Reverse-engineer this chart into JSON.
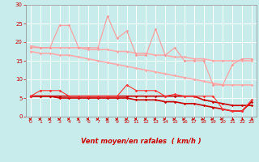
{
  "x": [
    0,
    1,
    2,
    3,
    4,
    5,
    6,
    7,
    8,
    9,
    10,
    11,
    12,
    13,
    14,
    15,
    16,
    17,
    18,
    19,
    20,
    21,
    22,
    23
  ],
  "series": [
    {
      "name": "gusts_light_zigzag",
      "y": [
        18.5,
        18.5,
        18.5,
        24.5,
        24.5,
        18.5,
        18.5,
        18.5,
        27,
        21,
        23,
        16.5,
        16.5,
        23.5,
        16.5,
        18.5,
        15,
        15,
        15,
        8.5,
        8.5,
        14,
        15.5,
        15.5
      ],
      "color": "#ff9999",
      "lw": 0.8,
      "marker": "D",
      "ms": 1.8,
      "zorder": 3
    },
    {
      "name": "upper_band_light",
      "y": [
        19,
        18.5,
        18.5,
        18.5,
        18.5,
        18.5,
        18,
        18,
        18,
        17.5,
        17.5,
        17,
        17,
        16.5,
        16.5,
        16,
        16,
        15.5,
        15.5,
        15,
        15,
        15,
        15,
        15
      ],
      "color": "#ffaaaa",
      "lw": 1.2,
      "marker": "D",
      "ms": 1.8,
      "zorder": 2
    },
    {
      "name": "lower_band_light",
      "y": [
        17.5,
        17,
        17,
        16.5,
        16.5,
        16,
        15.5,
        15,
        14.5,
        14,
        13.5,
        13,
        12.5,
        12,
        11.5,
        11,
        10.5,
        10,
        9.5,
        9,
        8.5,
        8.5,
        8.5,
        8.5
      ],
      "color": "#ffaaaa",
      "lw": 1.2,
      "marker": "D",
      "ms": 1.8,
      "zorder": 2
    },
    {
      "name": "gusts_dark_zigzag",
      "y": [
        5.5,
        7,
        7,
        7,
        5.5,
        5.5,
        5.5,
        5.5,
        5.5,
        5.5,
        8.5,
        7,
        7,
        7,
        5.5,
        6,
        5.5,
        5.5,
        5.5,
        5.5,
        2,
        1.5,
        1.5,
        4.5
      ],
      "color": "#ff3333",
      "lw": 0.8,
      "marker": "D",
      "ms": 1.8,
      "zorder": 4
    },
    {
      "name": "upper_band_dark",
      "y": [
        5.5,
        5.5,
        5.5,
        5.5,
        5.5,
        5.5,
        5.5,
        5.5,
        5.5,
        5.5,
        5.5,
        5.5,
        5.5,
        5.5,
        5.5,
        5.5,
        5.5,
        5.5,
        4.5,
        4,
        3.5,
        3,
        3,
        3
      ],
      "color": "#cc0000",
      "lw": 1.2,
      "marker": "D",
      "ms": 1.8,
      "zorder": 3
    },
    {
      "name": "lower_band_dark",
      "y": [
        5.5,
        5.5,
        5.5,
        5,
        5,
        5,
        5,
        5,
        5,
        5,
        5,
        4.5,
        4.5,
        4.5,
        4,
        4,
        3.5,
        3.5,
        3,
        2.5,
        2,
        1.5,
        1.5,
        4
      ],
      "color": "#cc0000",
      "lw": 1.2,
      "marker": "D",
      "ms": 1.8,
      "zorder": 3
    }
  ],
  "arrow_angles": [
    90,
    90,
    90,
    90,
    95,
    100,
    100,
    90,
    90,
    95,
    100,
    110,
    110,
    115,
    115,
    115,
    120,
    125,
    130,
    130,
    135,
    140,
    140,
    145
  ],
  "xlim": [
    -0.5,
    23.5
  ],
  "ylim": [
    0,
    30
  ],
  "yticks": [
    0,
    5,
    10,
    15,
    20,
    25,
    30
  ],
  "xticks": [
    0,
    1,
    2,
    3,
    4,
    5,
    6,
    7,
    8,
    9,
    10,
    11,
    12,
    13,
    14,
    15,
    16,
    17,
    18,
    19,
    20,
    21,
    22,
    23
  ],
  "xlabel": "Vent moyen/en rafales  ( km/h )",
  "bg_color": "#c8ecec",
  "grid_color": "#ffffff",
  "tick_color": "#cc0000",
  "label_color": "#cc0000",
  "arrow_color": "#cc0000",
  "spine_color": "#888888"
}
